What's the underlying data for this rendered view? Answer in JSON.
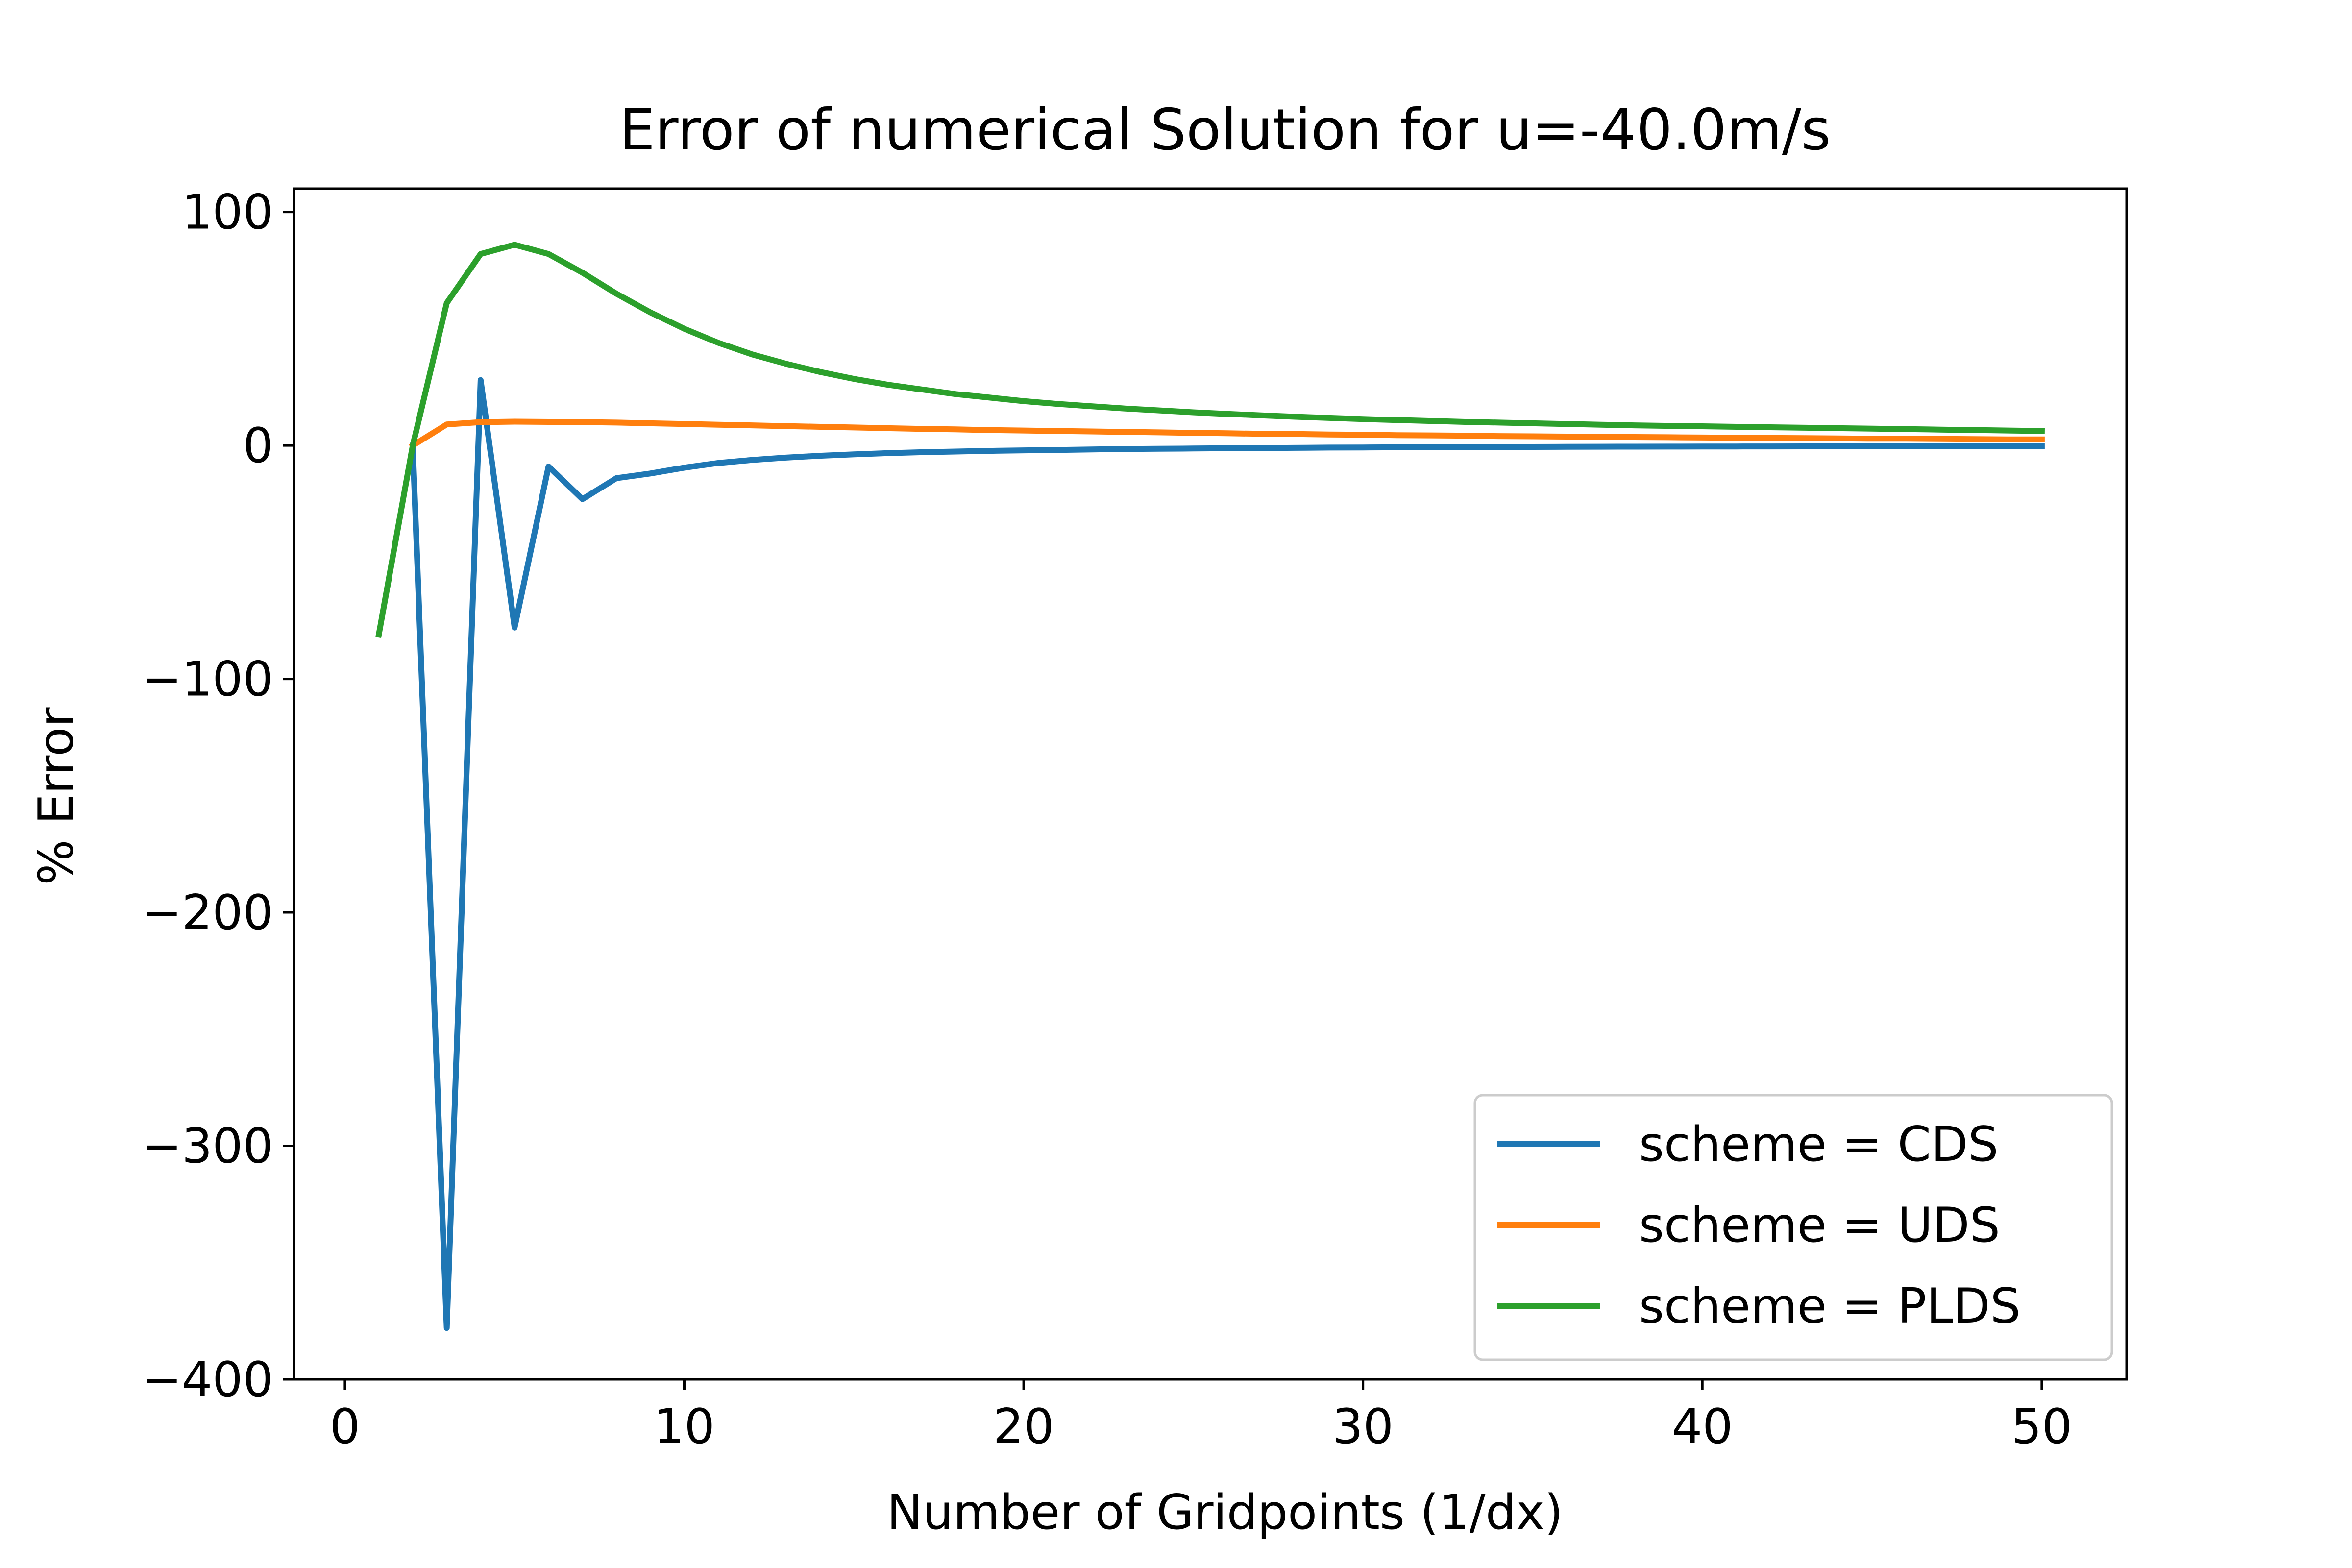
{
  "chart_data": {
    "type": "line",
    "title": "Error of numerical Solution for u=-40.0m/s",
    "xlabel": "Number of Gridpoints (1/dx)",
    "ylabel": "% Error",
    "xlim": [
      -1.5,
      52.5
    ],
    "ylim": [
      -400,
      110
    ],
    "xticks": [
      0,
      10,
      20,
      30,
      40,
      50
    ],
    "yticks": [
      100,
      0,
      -100,
      -200,
      -300,
      -400
    ],
    "xtick_labels": [
      "0",
      "10",
      "20",
      "30",
      "40",
      "50"
    ],
    "ytick_labels": [
      "100",
      "0",
      "−100",
      "−200",
      "−300",
      "−400"
    ],
    "grid": false,
    "legend_position": "lower-right",
    "x": [
      1,
      2,
      3,
      4,
      5,
      6,
      7,
      8,
      9,
      10,
      11,
      12,
      13,
      14,
      15,
      16,
      17,
      18,
      19,
      20,
      21,
      22,
      23,
      24,
      25,
      26,
      27,
      28,
      29,
      30,
      31,
      32,
      33,
      34,
      35,
      36,
      37,
      38,
      39,
      40,
      41,
      42,
      43,
      44,
      45,
      46,
      47,
      48,
      49,
      50
    ],
    "series": [
      {
        "name": "scheme = CDS",
        "color": "#1f77b4",
        "x": [
          2,
          3,
          4,
          5,
          6,
          7,
          8,
          9,
          10,
          11,
          12,
          13,
          14,
          15,
          16,
          17,
          18,
          19,
          20,
          21,
          22,
          23,
          24,
          25,
          26,
          27,
          28,
          29,
          30,
          31,
          32,
          33,
          34,
          35,
          36,
          37,
          38,
          39,
          40,
          41,
          42,
          43,
          44,
          45,
          46,
          47,
          48,
          49,
          50
        ],
        "values": [
          0,
          -378,
          28,
          -78,
          -9,
          -23,
          -14,
          -12,
          -9.5,
          -7.5,
          -6.2,
          -5.2,
          -4.4,
          -3.8,
          -3.3,
          -2.9,
          -2.6,
          -2.3,
          -2.1,
          -1.9,
          -1.7,
          -1.5,
          -1.4,
          -1.3,
          -1.2,
          -1.1,
          -1.0,
          -0.9,
          -0.85,
          -0.8,
          -0.75,
          -0.7,
          -0.65,
          -0.6,
          -0.56,
          -0.53,
          -0.5,
          -0.47,
          -0.45,
          -0.43,
          -0.41,
          -0.39,
          -0.37,
          -0.35,
          -0.34,
          -0.33,
          -0.32,
          -0.31,
          -0.3
        ]
      },
      {
        "name": "scheme = UDS",
        "color": "#ff7f0e",
        "x": [
          2,
          3,
          4,
          5,
          6,
          7,
          8,
          9,
          10,
          11,
          12,
          13,
          14,
          15,
          16,
          17,
          18,
          19,
          20,
          21,
          22,
          23,
          24,
          25,
          26,
          27,
          28,
          29,
          30,
          31,
          32,
          33,
          34,
          35,
          36,
          37,
          38,
          39,
          40,
          41,
          42,
          43,
          44,
          45,
          46,
          47,
          48,
          49,
          50
        ],
        "values": [
          0,
          9,
          10,
          10.2,
          10.1,
          10,
          9.8,
          9.5,
          9.2,
          8.9,
          8.6,
          8.3,
          8.0,
          7.7,
          7.4,
          7.1,
          6.9,
          6.6,
          6.4,
          6.2,
          6.0,
          5.8,
          5.6,
          5.4,
          5.2,
          5.0,
          4.9,
          4.7,
          4.6,
          4.4,
          4.3,
          4.2,
          4.0,
          3.9,
          3.8,
          3.7,
          3.6,
          3.5,
          3.4,
          3.3,
          3.2,
          3.1,
          3.0,
          2.9,
          2.9,
          2.8,
          2.7,
          2.6,
          2.6
        ]
      },
      {
        "name": "scheme = PLDS",
        "color": "#2ca02c",
        "x": [
          1,
          2,
          3,
          4,
          5,
          6,
          7,
          8,
          9,
          10,
          11,
          12,
          13,
          14,
          15,
          16,
          17,
          18,
          19,
          20,
          21,
          22,
          23,
          24,
          25,
          26,
          27,
          28,
          29,
          30,
          31,
          32,
          33,
          34,
          35,
          36,
          37,
          38,
          39,
          40,
          41,
          42,
          43,
          44,
          45,
          46,
          47,
          48,
          49,
          50
        ],
        "values": [
          -81,
          0,
          61,
          82,
          86,
          82,
          74,
          65,
          57,
          50,
          44,
          39,
          35,
          31.5,
          28.5,
          26,
          24,
          22,
          20.5,
          19,
          17.8,
          16.8,
          15.8,
          15,
          14.2,
          13.5,
          12.9,
          12.3,
          11.8,
          11.3,
          10.9,
          10.5,
          10.1,
          9.8,
          9.5,
          9.2,
          8.9,
          8.6,
          8.4,
          8.2,
          8.0,
          7.8,
          7.6,
          7.4,
          7.2,
          7.0,
          6.8,
          6.6,
          6.4,
          6.2
        ]
      }
    ]
  }
}
